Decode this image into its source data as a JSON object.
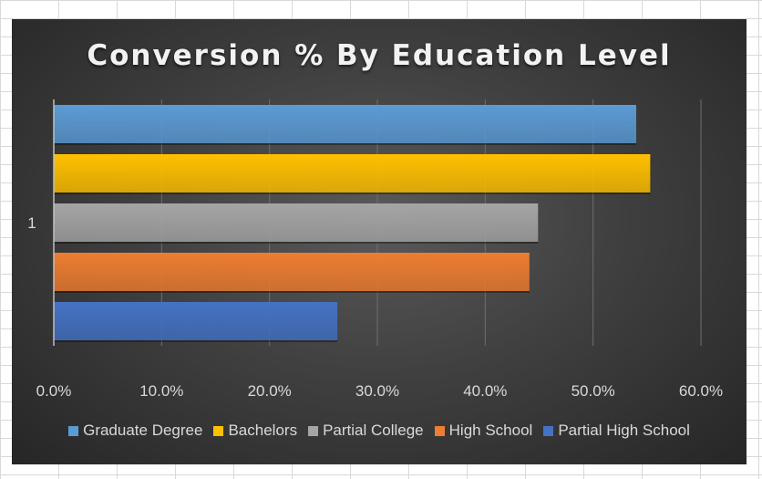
{
  "chart_data": {
    "type": "bar",
    "orientation": "horizontal",
    "title": "Conversion % By Education Level",
    "categories": [
      "1"
    ],
    "series": [
      {
        "name": "Graduate Degree",
        "values": [
          0.54
        ],
        "color": "#5b9bd5"
      },
      {
        "name": "Bachelors",
        "values": [
          0.553
        ],
        "color": "#ffc000"
      },
      {
        "name": "Partial College",
        "values": [
          0.449
        ],
        "color": "#a5a5a5"
      },
      {
        "name": "High School",
        "values": [
          0.441
        ],
        "color": "#ed7d31"
      },
      {
        "name": "Partial High School",
        "values": [
          0.263
        ],
        "color": "#4472c4"
      }
    ],
    "xlim": [
      0,
      0.6
    ],
    "x_ticks": [
      "0.0%",
      "10.0%",
      "20.0%",
      "30.0%",
      "40.0%",
      "50.0%",
      "60.0%"
    ],
    "xlabel": "",
    "ylabel": "",
    "grid": true,
    "legend_position": "bottom"
  }
}
